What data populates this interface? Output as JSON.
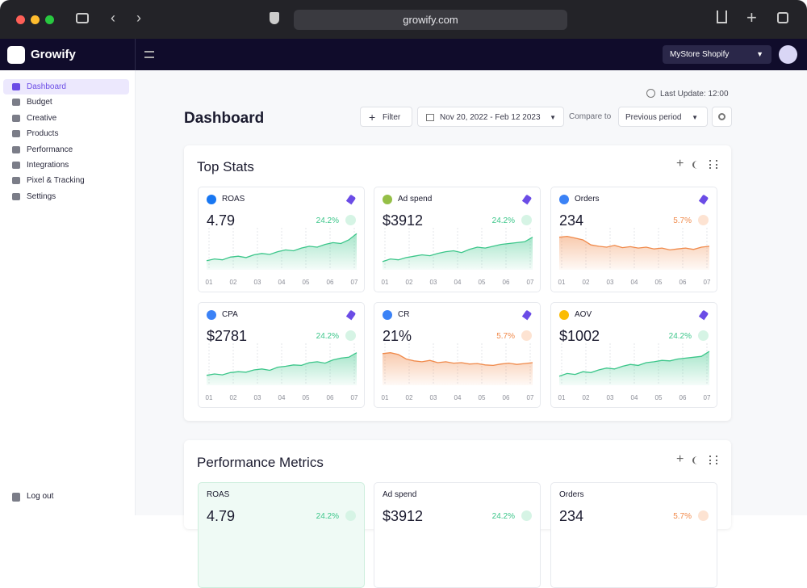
{
  "browser": {
    "url": "growify.com"
  },
  "sidebar": {
    "brand": "Growify",
    "nav": [
      "Dashboard",
      "Budget",
      "Creative",
      "Products",
      "Performance",
      "Integrations",
      "Pixel & Tracking",
      "Settings"
    ],
    "logout": "Log out"
  },
  "topbar": {
    "store": "MyStore Shopify"
  },
  "header": {
    "last_update": "Last Update: 12:00",
    "title": "Dashboard",
    "filter": "Filter",
    "date_range": "Nov 20, 2022 - Feb 12 2023",
    "compare_label": "Compare to",
    "compare_value": "Previous period"
  },
  "top_stats": {
    "title": "Top Stats",
    "x_labels": [
      "01",
      "02",
      "03",
      "04",
      "05",
      "06",
      "07"
    ],
    "cards": [
      {
        "name": "ROAS",
        "value": "4.79",
        "change": "24.2%",
        "direction": "up",
        "trend": [
          20,
          24,
          22,
          28,
          30,
          27,
          33,
          36,
          34,
          40,
          44,
          42,
          48,
          52,
          50,
          56,
          60,
          58,
          66,
          80
        ]
      },
      {
        "name": "Ad spend",
        "value": "$3912",
        "change": "24.2%",
        "direction": "up",
        "trend": [
          18,
          24,
          22,
          27,
          30,
          33,
          31,
          36,
          40,
          42,
          38,
          45,
          50,
          48,
          52,
          56,
          58,
          60,
          62,
          72
        ]
      },
      {
        "name": "Orders",
        "value": "234",
        "change": "5.7%",
        "direction": "down",
        "trend": [
          72,
          74,
          70,
          66,
          55,
          52,
          50,
          54,
          49,
          51,
          48,
          50,
          46,
          48,
          44,
          46,
          48,
          45,
          50,
          52
        ]
      },
      {
        "name": "CPA",
        "value": "$2781",
        "change": "24.2%",
        "direction": "up",
        "trend": [
          22,
          25,
          23,
          28,
          30,
          29,
          34,
          36,
          33,
          40,
          42,
          45,
          44,
          50,
          52,
          49,
          56,
          60,
          62,
          72
        ]
      },
      {
        "name": "CR",
        "value": "21%",
        "change": "5.7%",
        "direction": "down",
        "trend": [
          70,
          72,
          68,
          58,
          54,
          52,
          55,
          50,
          52,
          49,
          50,
          47,
          48,
          45,
          44,
          47,
          49,
          46,
          48,
          50
        ]
      },
      {
        "name": "AOV",
        "value": "$1002",
        "change": "24.2%",
        "direction": "up",
        "trend": [
          20,
          26,
          24,
          30,
          28,
          34,
          38,
          36,
          42,
          46,
          44,
          50,
          52,
          55,
          54,
          58,
          60,
          62,
          64,
          75
        ]
      }
    ]
  },
  "performance_metrics": {
    "title": "Performance Metrics",
    "cards": [
      {
        "name": "ROAS",
        "value": "4.79",
        "change": "24.2%",
        "direction": "up"
      },
      {
        "name": "Ad spend",
        "value": "$3912",
        "change": "24.2%",
        "direction": "up"
      },
      {
        "name": "Orders",
        "value": "234",
        "change": "5.7%",
        "direction": "down"
      }
    ]
  }
}
